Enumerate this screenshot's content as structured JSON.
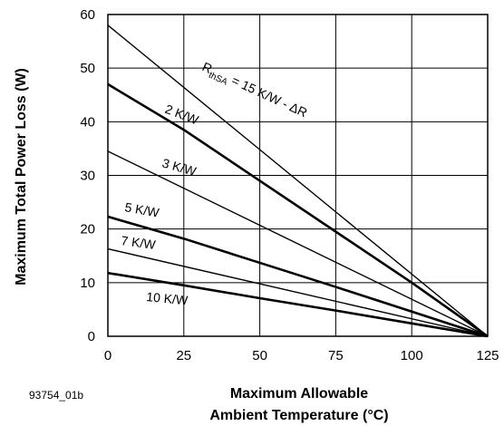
{
  "chart_data": {
    "type": "line",
    "figure_id": "93754_01b",
    "xlabel_line1": "Maximum Allowable",
    "xlabel_line2": "Ambient Temperature (°C)",
    "ylabel": "Maximum Total Power Loss (W)",
    "xlim": [
      0,
      125
    ],
    "ylim": [
      0,
      60
    ],
    "x_ticks": [
      "0",
      "25",
      "50",
      "75",
      "100",
      "125"
    ],
    "y_ticks": [
      "0",
      "10",
      "20",
      "30",
      "40",
      "50",
      "60"
    ],
    "grid": true,
    "series": [
      {
        "name_main": "R",
        "name_sub": "thSA",
        "name_rest": " = 15 K/W - ΔR",
        "width": 1.4,
        "x": [
          0,
          125
        ],
        "y": [
          58,
          0
        ]
      },
      {
        "name": "2 K/W",
        "width": 2.6,
        "x": [
          0,
          25,
          50,
          75,
          100,
          125
        ],
        "y": [
          47,
          38.5,
          29,
          19.5,
          10,
          0
        ]
      },
      {
        "name": "3 K/W",
        "width": 1.4,
        "x": [
          0,
          125
        ],
        "y": [
          34.5,
          0
        ]
      },
      {
        "name": "5 K/W",
        "width": 2.6,
        "x": [
          0,
          25,
          50,
          75,
          100,
          125
        ],
        "y": [
          22.3,
          18.2,
          13.7,
          9.2,
          4.6,
          0
        ]
      },
      {
        "name": "7 K/W",
        "width": 1.4,
        "x": [
          0,
          125
        ],
        "y": [
          16.3,
          0
        ]
      },
      {
        "name": "10 K/W",
        "width": 2.6,
        "x": [
          0,
          25,
          50,
          75,
          100,
          125
        ],
        "y": [
          11.8,
          9.5,
          7.1,
          4.8,
          2.4,
          0
        ]
      }
    ]
  }
}
